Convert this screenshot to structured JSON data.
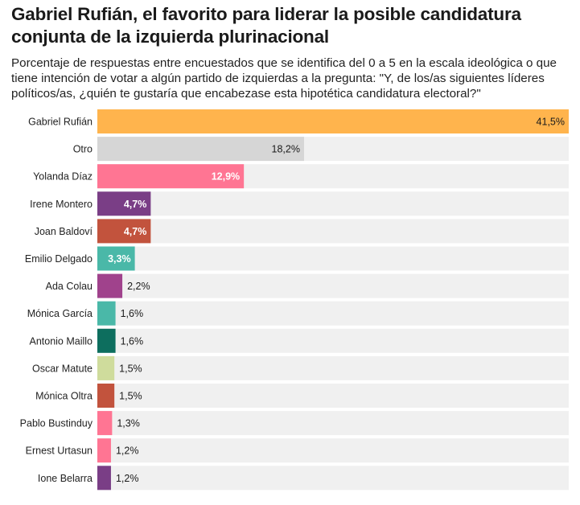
{
  "chart_data": {
    "type": "bar",
    "orientation": "horizontal",
    "title": "Gabriel Rufián, el favorito para liderar la posible candidatura conjunta de la izquierda plurinacional",
    "subtitle": "Porcentaje de respuestas entre encuestados que se identifica del 0 a 5 en la escala ideológica o que tiene intención de votar a algún partido de izquierdas a la pregunta: \"Y, de los/as siguientes líderes políticos/as, ¿quién te gustaría que encabezase esta hipotética candidatura electoral?\"",
    "categories": [
      "Gabriel Rufián",
      "Otro",
      "Yolanda Díaz",
      "Irene Montero",
      "Joan Baldoví",
      "Emilio Delgado",
      "Ada Colau",
      "Mónica García",
      "Antonio Maillo",
      "Oscar Matute",
      "Mónica Oltra",
      "Pablo Bustinduy",
      "Ernest Urtasun",
      "Ione Belarra"
    ],
    "values": [
      41.5,
      18.2,
      12.9,
      4.7,
      4.7,
      3.3,
      2.2,
      1.6,
      1.6,
      1.5,
      1.5,
      1.3,
      1.2,
      1.2
    ],
    "value_labels": [
      "41,5%",
      "18,2%",
      "12,9%",
      "4,7%",
      "4,7%",
      "3,3%",
      "2,2%",
      "1,6%",
      "1,6%",
      "1,5%",
      "1,5%",
      "1,3%",
      "1,2%",
      "1,2%"
    ],
    "colors": [
      "#ffb44d",
      "#d6d6d6",
      "#ff7593",
      "#7a3e86",
      "#c2533d",
      "#4ab8a8",
      "#a0428c",
      "#4ab8a8",
      "#0d6e5e",
      "#cfdc9c",
      "#c2533d",
      "#ff7593",
      "#ff7593",
      "#7a3e86"
    ],
    "label_inside": [
      true,
      true,
      true,
      true,
      true,
      true,
      false,
      false,
      false,
      false,
      false,
      false,
      false,
      false
    ],
    "label_color": [
      "#1a1a1a",
      "#1a1a1a",
      "#ffffff",
      "#ffffff",
      "#ffffff",
      "#ffffff",
      "#1a1a1a",
      "#1a1a1a",
      "#1a1a1a",
      "#1a1a1a",
      "#1a1a1a",
      "#1a1a1a",
      "#1a1a1a",
      "#1a1a1a"
    ],
    "bold_label": [
      false,
      false,
      true,
      true,
      true,
      true,
      false,
      false,
      false,
      false,
      false,
      false,
      false,
      false
    ],
    "track_color": "#f0f0f0",
    "xlim": [
      0,
      41.5
    ],
    "grid": false,
    "legend": "none"
  }
}
